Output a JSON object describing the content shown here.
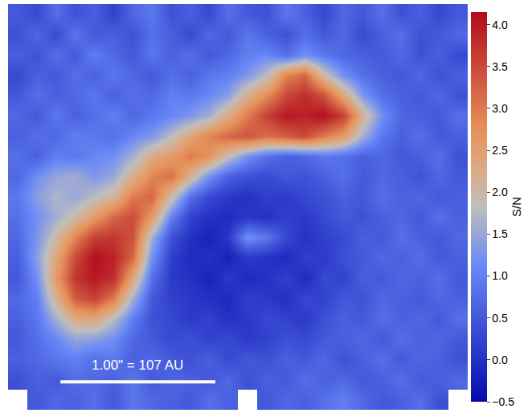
{
  "chart_data": {
    "type": "heatmap",
    "tick_labels": false,
    "colorbar": {
      "title": "S/N",
      "range": [
        -0.5,
        4.15
      ],
      "ticks": [
        {
          "value": -0.5,
          "label": "−0.5"
        },
        {
          "value": 0,
          "label": "0.0"
        },
        {
          "value": 0.5,
          "label": "0.5"
        },
        {
          "value": 1,
          "label": "1.0"
        },
        {
          "value": 1.5,
          "label": "1.5"
        },
        {
          "value": 2,
          "label": "2.0"
        },
        {
          "value": 2.5,
          "label": "2.5"
        },
        {
          "value": 3,
          "label": "3.0"
        },
        {
          "value": 3.5,
          "label": "3.5"
        },
        {
          "value": 4,
          "label": "4.0"
        }
      ]
    },
    "scale_bar": {
      "label": "1.00\" = 107 AU"
    },
    "cells": [
      [
        0.5,
        0.3,
        0.8,
        0.4,
        0.6,
        0.2,
        0.7,
        0.9,
        0.4,
        0.6,
        0.3,
        0.8,
        0.5,
        0.4,
        0.9,
        0.6,
        0.3,
        0.7,
        0.5,
        0.8,
        0.4,
        0.6,
        0.3,
        0.5
      ],
      [
        0.4,
        0.7,
        0.3,
        0.9,
        0.5,
        0.6,
        0.4,
        0.8,
        0.6,
        0.3,
        0.7,
        0.5,
        0.9,
        0.6,
        0.4,
        0.8,
        0.5,
        0.7,
        0.3,
        0.6,
        0.8,
        0.4,
        0.5,
        0.7
      ],
      [
        0.6,
        0.4,
        0.8,
        0.5,
        1.0,
        0.7,
        0.5,
        0.9,
        0.6,
        0.8,
        0.5,
        0.7,
        1.0,
        1.1,
        0.8,
        1.2,
        0.9,
        0.7,
        0.6,
        0.5,
        0.7,
        0.4,
        0.6,
        0.3
      ],
      [
        0.3,
        0.6,
        0.5,
        0.8,
        0.6,
        0.9,
        0.7,
        0.5,
        0.8,
        0.6,
        0.9,
        1.0,
        1.3,
        1.8,
        2.9,
        3.2,
        2.0,
        1.2,
        0.8,
        0.6,
        0.5,
        0.7,
        0.4,
        0.6
      ],
      [
        0.5,
        0.8,
        0.6,
        0.7,
        0.9,
        0.6,
        0.8,
        0.7,
        1.0,
        0.9,
        1.1,
        1.4,
        2.2,
        2.8,
        3.5,
        3.8,
        3.4,
        2.4,
        1.3,
        0.8,
        0.6,
        0.5,
        0.7,
        0.4
      ],
      [
        0.7,
        0.5,
        0.9,
        0.6,
        0.8,
        1.0,
        0.7,
        0.9,
        1.1,
        1.3,
        1.6,
        2.3,
        3.0,
        3.6,
        4.0,
        3.9,
        4.1,
        3.6,
        2.2,
        1.2,
        0.7,
        0.6,
        0.5,
        0.8
      ],
      [
        0.6,
        0.8,
        0.7,
        1.0,
        0.9,
        0.8,
        1.1,
        1.3,
        1.8,
        2.4,
        2.9,
        3.2,
        3.4,
        3.1,
        3.3,
        3.5,
        3.0,
        2.6,
        1.6,
        0.9,
        0.6,
        0.8,
        0.5,
        0.6
      ],
      [
        0.8,
        0.6,
        1.0,
        0.9,
        1.1,
        1.2,
        1.6,
        2.3,
        2.6,
        3.0,
        2.7,
        1.9,
        1.2,
        0.8,
        0.6,
        0.7,
        0.9,
        0.8,
        0.6,
        0.7,
        0.5,
        0.6,
        0.8,
        0.4
      ],
      [
        0.7,
        1.2,
        1.5,
        1.6,
        1.3,
        1.5,
        2.2,
        2.9,
        3.1,
        2.2,
        1.2,
        0.6,
        0.4,
        0.3,
        0.5,
        0.4,
        0.6,
        0.8,
        0.5,
        0.7,
        0.6,
        0.4,
        0.7,
        0.5
      ],
      [
        0.9,
        1.4,
        1.7,
        1.5,
        1.8,
        2.1,
        3.0,
        3.2,
        2.0,
        0.8,
        0.3,
        0.1,
        0.0,
        0.2,
        0.1,
        0.3,
        0.4,
        0.6,
        0.5,
        0.8,
        0.6,
        0.7,
        0.5,
        0.6
      ],
      [
        0.8,
        1.2,
        1.6,
        2.0,
        2.6,
        3.2,
        3.5,
        2.6,
        1.0,
        0.2,
        0.0,
        -0.1,
        0.1,
        0.0,
        0.2,
        0.1,
        0.3,
        0.5,
        0.4,
        0.6,
        0.7,
        0.5,
        0.8,
        0.6
      ],
      [
        0.7,
        1.3,
        2.0,
        2.9,
        3.6,
        3.7,
        3.4,
        1.6,
        0.4,
        0.0,
        -0.2,
        0.1,
        1.2,
        0.9,
        0.3,
        0.0,
        0.2,
        0.3,
        0.6,
        0.5,
        0.8,
        0.6,
        0.5,
        0.7
      ],
      [
        0.6,
        1.4,
        2.4,
        3.5,
        4.1,
        3.9,
        3.2,
        1.2,
        0.2,
        -0.1,
        0.0,
        -0.2,
        0.1,
        0.0,
        -0.1,
        0.2,
        0.1,
        0.4,
        0.5,
        0.7,
        0.6,
        0.8,
        0.5,
        0.6
      ],
      [
        0.5,
        1.2,
        2.6,
        3.7,
        4.0,
        3.8,
        2.4,
        0.8,
        0.1,
        0.0,
        -0.2,
        0.1,
        -0.1,
        0.0,
        0.2,
        -0.1,
        0.3,
        0.2,
        0.6,
        0.5,
        0.7,
        0.6,
        0.8,
        0.5
      ],
      [
        0.7,
        1.0,
        2.2,
        3.3,
        3.6,
        3.0,
        1.6,
        0.5,
        0.2,
        0.1,
        0.0,
        -0.1,
        0.2,
        0.1,
        0.0,
        0.3,
        0.2,
        0.5,
        0.4,
        0.7,
        0.6,
        0.5,
        0.7,
        0.6
      ],
      [
        0.6,
        0.9,
        1.6,
        2.3,
        2.4,
        1.8,
        1.0,
        0.4,
        0.3,
        0.1,
        0.2,
        0.0,
        0.1,
        0.3,
        0.2,
        0.1,
        0.4,
        0.6,
        0.5,
        0.8,
        0.6,
        0.7,
        0.5,
        0.8
      ],
      [
        0.5,
        0.8,
        1.1,
        1.5,
        1.4,
        1.2,
        0.7,
        0.5,
        0.3,
        0.4,
        0.2,
        0.3,
        0.1,
        0.2,
        0.4,
        0.3,
        0.5,
        0.6,
        0.7,
        0.5,
        0.8,
        0.6,
        0.7,
        0.5
      ],
      [
        0.6,
        0.7,
        0.9,
        1.0,
        0.8,
        0.9,
        0.6,
        0.7,
        0.5,
        0.4,
        0.6,
        0.3,
        0.5,
        0.4,
        0.6,
        0.5,
        0.7,
        0.4,
        0.6,
        0.8,
        0.5,
        0.7,
        0.6,
        0.4
      ],
      [
        0.4,
        0.6,
        0.5,
        0.8,
        0.7,
        0.6,
        0.9,
        0.5,
        0.7,
        0.6,
        0.5,
        0.7,
        0.4,
        0.6,
        0.5,
        0.8,
        0.6,
        0.7,
        0.5,
        0.6,
        0.8,
        0.5,
        0.6,
        0.7
      ],
      [
        null,
        0.5,
        0.7,
        0.6,
        0.8,
        0.5,
        0.9,
        0.7,
        0.6,
        0.5,
        0.8,
        0.6,
        null,
        0.5,
        0.7,
        0.6,
        0.8,
        1.0,
        0.7,
        0.5,
        0.6,
        0.8,
        0.4,
        null
      ]
    ]
  }
}
